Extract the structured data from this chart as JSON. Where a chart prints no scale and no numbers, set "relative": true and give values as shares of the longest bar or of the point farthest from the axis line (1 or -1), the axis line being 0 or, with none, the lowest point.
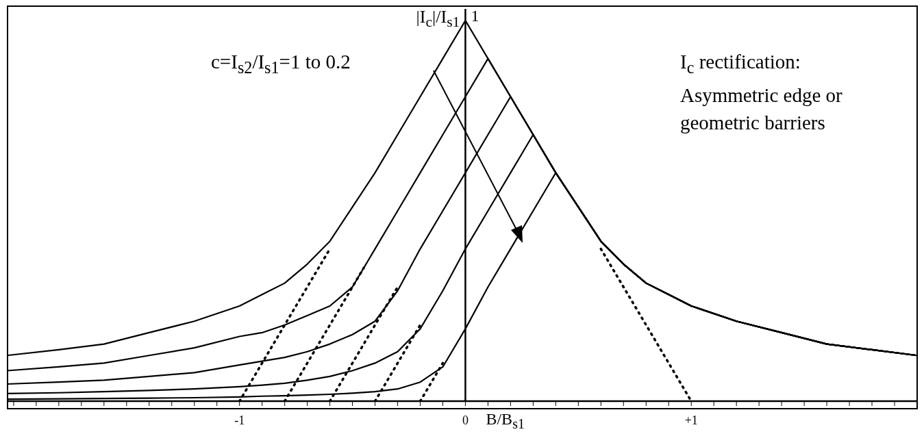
{
  "chart_data": {
    "type": "line",
    "relative": true,
    "line_style": "solid",
    "xlabel": "B/B$_{s1}$",
    "ylabel": "|I$_{c}$|/I$_{s1}$",
    "xlim": [
      -2.03,
      2.0
    ],
    "xticks": [
      {
        "value": -2.0,
        "label": null
      },
      {
        "value": -1.9,
        "label": null
      },
      {
        "value": -1.8,
        "label": null
      },
      {
        "value": -1.7,
        "label": null
      },
      {
        "value": -1.6,
        "label": null
      },
      {
        "value": -1.5,
        "label": null
      },
      {
        "value": -1.4,
        "label": null
      },
      {
        "value": -1.3,
        "label": null
      },
      {
        "value": -1.2,
        "label": null
      },
      {
        "value": -1.1,
        "label": null
      },
      -1,
      {
        "value": -0.9,
        "label": null
      },
      {
        "value": -0.8,
        "label": null
      },
      {
        "value": -0.7,
        "label": null
      },
      {
        "value": -0.6,
        "label": null
      },
      {
        "value": -0.5,
        "label": null
      },
      {
        "value": -0.4,
        "label": null
      },
      {
        "value": -0.3,
        "label": null
      },
      {
        "value": -0.2,
        "label": null
      },
      {
        "value": -0.1,
        "label": null
      },
      0,
      {
        "value": 0.1,
        "label": null
      },
      {
        "value": 0.2,
        "label": null
      },
      {
        "value": 0.3,
        "label": null
      },
      {
        "value": 0.4,
        "label": null
      },
      {
        "value": 0.5,
        "label": null
      },
      {
        "value": 0.6,
        "label": null
      },
      {
        "value": 0.7,
        "label": null
      },
      {
        "value": 0.8,
        "label": null
      },
      {
        "value": 0.9,
        "label": null
      },
      {
        "value": 1,
        "label": "+1"
      },
      {
        "value": 1.1,
        "label": null
      },
      {
        "value": 1.2,
        "label": null
      },
      {
        "value": 1.3,
        "label": null
      },
      {
        "value": 1.4,
        "label": null
      },
      {
        "value": 1.5,
        "label": null
      },
      {
        "value": 1.6,
        "label": null
      },
      {
        "value": 1.7,
        "label": null
      },
      {
        "value": 1.8,
        "label": null
      },
      {
        "value": 1.9,
        "label": null
      },
      {
        "value": 2.0,
        "label": null
      }
    ],
    "x": [
      -2.03,
      -1.8,
      -1.6,
      -1.4,
      -1.2,
      -1.0,
      -0.9,
      -0.8,
      -0.7,
      -0.6,
      -0.5,
      -0.4,
      -0.3,
      -0.2,
      -0.1,
      0,
      0.1,
      0.2,
      0.3,
      0.4,
      0.5,
      0.6,
      0.7,
      0.8,
      0.9,
      1.0,
      1.2,
      1.4,
      1.6,
      1.8,
      2.0
    ],
    "series": [
      {
        "color": "#000000",
        "values": [
          0.12,
          0.135,
          0.15,
          0.18,
          0.21,
          0.25,
          0.28,
          0.31,
          0.36,
          0.42,
          0.51,
          0.6,
          0.7,
          0.8,
          0.9,
          1,
          0.9,
          0.8,
          0.7,
          0.6,
          0.51,
          0.42,
          0.36,
          0.31,
          0.28,
          0.25,
          0.21,
          0.18,
          0.15,
          0.135,
          0.12
        ]
      },
      {
        "color": "#000000",
        "values": [
          0.08,
          0.09,
          0.1,
          0.12,
          0.14,
          0.17,
          0.18,
          0.2,
          0.225,
          0.25,
          0.3,
          0.4,
          0.5,
          0.6,
          0.7,
          0.8,
          0.9,
          0.8,
          0.7,
          0.6,
          0.51,
          0.42,
          0.36,
          0.31,
          0.28,
          0.25,
          0.21,
          0.18,
          0.15,
          0.135,
          0.12
        ]
      },
      {
        "color": "#000000",
        "values": [
          0.045,
          0.05,
          0.055,
          0.065,
          0.075,
          0.095,
          0.105,
          0.115,
          0.13,
          0.15,
          0.175,
          0.21,
          0.29,
          0.4,
          0.5,
          0.6,
          0.7,
          0.8,
          0.7,
          0.6,
          0.51,
          0.42,
          0.36,
          0.31,
          0.28,
          0.25,
          0.21,
          0.18,
          0.15,
          0.135,
          0.12
        ]
      },
      {
        "color": "#000000",
        "values": [
          0.02,
          0.022,
          0.025,
          0.028,
          0.032,
          0.038,
          0.042,
          0.047,
          0.055,
          0.065,
          0.08,
          0.1,
          0.13,
          0.19,
          0.29,
          0.4,
          0.5,
          0.6,
          0.7,
          0.6,
          0.51,
          0.42,
          0.36,
          0.31,
          0.28,
          0.25,
          0.21,
          0.18,
          0.15,
          0.135,
          0.12
        ]
      },
      {
        "color": "#000000",
        "values": [
          0.005,
          0.006,
          0.007,
          0.008,
          0.009,
          0.011,
          0.013,
          0.014,
          0.016,
          0.018,
          0.021,
          0.025,
          0.032,
          0.05,
          0.09,
          0.19,
          0.3,
          0.4,
          0.5,
          0.6,
          0.51,
          0.42,
          0.36,
          0.31,
          0.28,
          0.25,
          0.21,
          0.18,
          0.15,
          0.135,
          0.12
        ]
      },
      {
        "color": "#000000",
        "line_style": "dotted",
        "x": [
          -1,
          -0.6
        ],
        "values": [
          0,
          0.4
        ]
      },
      {
        "color": "#000000",
        "line_style": "dotted",
        "x": [
          -0.8,
          -0.45
        ],
        "values": [
          0,
          0.35
        ]
      },
      {
        "color": "#000000",
        "line_style": "dotted",
        "x": [
          -0.6,
          -0.3
        ],
        "values": [
          0,
          0.3
        ]
      },
      {
        "color": "#000000",
        "line_style": "dotted",
        "x": [
          -0.4,
          -0.2
        ],
        "values": [
          0,
          0.2
        ]
      },
      {
        "color": "#000000",
        "line_style": "dotted",
        "x": [
          -0.2,
          -0.1
        ],
        "values": [
          0,
          0.1
        ]
      },
      {
        "color": "#000000",
        "line_style": "dotted",
        "x": [
          0.6,
          1
        ],
        "values": [
          0.4,
          0
        ]
      }
    ],
    "ref_lines": [
      {
        "axis": "x",
        "value": 0
      }
    ],
    "annotations": [
      "c=I$_{s2}$/I$_{s1}$=1 to 0.2",
      "I$_{c}$ rectification:\nAsymmetric edge or\ngeometric barriers",
      {
        "text": "1",
        "x": 0,
        "y": 1
      }
    ]
  }
}
